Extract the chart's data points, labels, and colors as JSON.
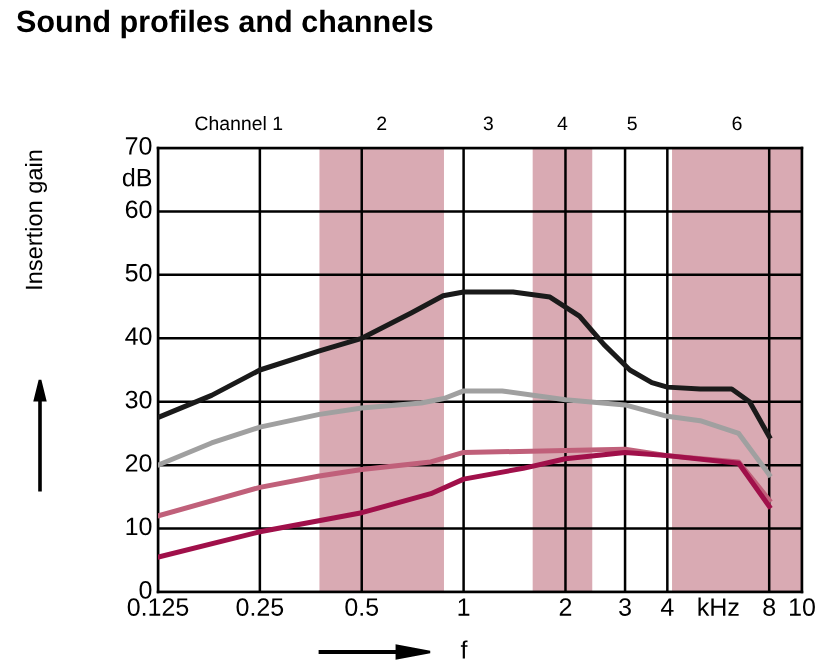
{
  "chart_data": {
    "type": "line",
    "title": "Sound profiles and channels",
    "xlabel": "f",
    "ylabel": "Insertion gain",
    "log": "x",
    "xlim": [
      0.125,
      10
    ],
    "ylim": [
      0,
      70
    ],
    "xticks": [
      0.125,
      0.25,
      0.5,
      1,
      2,
      3,
      4,
      {
        "value": 5.66,
        "label": "kHz"
      },
      8,
      10
    ],
    "yticks": [
      0,
      10,
      20,
      30,
      40,
      50,
      60,
      {
        "value": 65,
        "label": "dB"
      },
      70
    ],
    "grid": true,
    "bands": [
      {
        "axis": "x",
        "from": 0.375,
        "to": 0.875,
        "label": "2",
        "color": "#d9aab3"
      },
      {
        "axis": "x",
        "from": 1.6,
        "to": 2.4,
        "label": "4",
        "color": "#d9aab3"
      },
      {
        "axis": "x",
        "from": 4.13,
        "to": 10,
        "label": "6",
        "color": "#d9aab3"
      }
    ],
    "annotations": [
      "Channel 1",
      "3",
      "5"
    ],
    "series": [
      {
        "color": "#1a1a1a",
        "x": [
          0.125,
          0.18,
          0.25,
          0.375,
          0.5,
          0.7,
          0.87,
          1,
          1.4,
          1.8,
          2.2,
          2.6,
          3.1,
          3.6,
          4,
          5,
          6.2,
          7,
          8
        ],
        "values": [
          27.5,
          31,
          35,
          38,
          40,
          44,
          46.7,
          47.3,
          47.3,
          46.5,
          43.5,
          39,
          35,
          33,
          32.3,
          32,
          32,
          30,
          24.5
        ]
      },
      {
        "color": "#a0a0a0",
        "x": [
          0.125,
          0.18,
          0.25,
          0.375,
          0.5,
          0.75,
          0.875,
          1,
          1.3,
          2,
          3,
          4,
          5,
          6.5,
          8
        ],
        "values": [
          20,
          23.5,
          26,
          28,
          29,
          29.8,
          30.5,
          31.7,
          31.7,
          30.3,
          29.5,
          27.7,
          27,
          25,
          18.5
        ]
      },
      {
        "color": "#c0607a",
        "x": [
          0.125,
          0.25,
          0.375,
          0.5,
          0.8,
          1,
          2,
          3,
          4,
          6.5,
          8
        ],
        "values": [
          12,
          16.5,
          18.3,
          19.3,
          20.5,
          22,
          22.3,
          22.5,
          21.5,
          20.5,
          14.5
        ]
      },
      {
        "color": "#a0104a",
        "x": [
          0.125,
          0.25,
          0.5,
          0.8,
          1,
          1.5,
          2,
          3,
          4,
          6.5,
          8
        ],
        "values": [
          5.5,
          9.5,
          12.5,
          15.5,
          17.8,
          19.5,
          21,
          22,
          21.5,
          20.3,
          13.5
        ]
      }
    ]
  }
}
